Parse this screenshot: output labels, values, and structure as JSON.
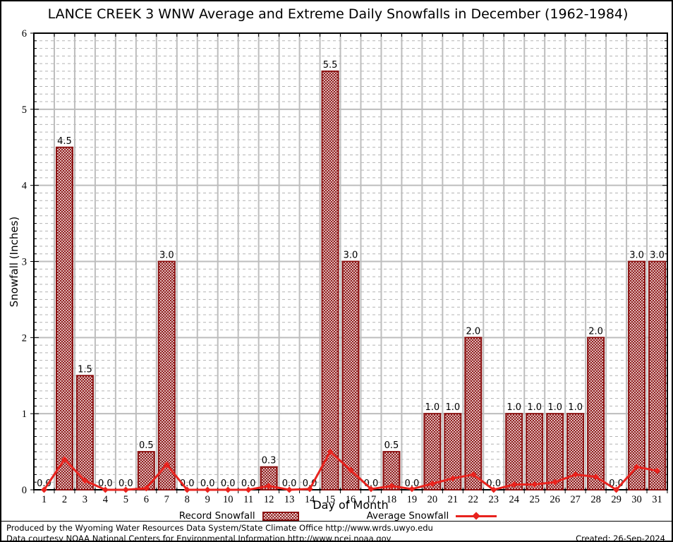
{
  "title": "LANCE CREEK 3 WNW Average and Extreme Daily Snowfalls in December (1962-1984)",
  "chart_data": {
    "type": "bar",
    "title": "LANCE CREEK 3 WNW Average and Extreme Daily Snowfalls in December (1962-1984)",
    "xlabel": "Day of Month",
    "ylabel": "Snowfall (Inches)",
    "ylim": [
      0,
      6
    ],
    "yticks": [
      0,
      1,
      2,
      3,
      4,
      5,
      6
    ],
    "y_minor_step": 0.1,
    "grid": "major-solid, minor-dashed, vertical day separators",
    "legend_position": "bottom-center",
    "categories": [
      1,
      2,
      3,
      4,
      5,
      6,
      7,
      8,
      9,
      10,
      11,
      12,
      13,
      14,
      15,
      16,
      17,
      18,
      19,
      20,
      21,
      22,
      23,
      24,
      25,
      26,
      27,
      28,
      29,
      30,
      31
    ],
    "series": [
      {
        "name": "Record Snowfall",
        "type": "bar",
        "values": [
          0.0,
          4.5,
          1.5,
          0.0,
          0.0,
          0.5,
          3.0,
          0.0,
          0.0,
          0.0,
          0.0,
          0.3,
          0.0,
          0.0,
          5.5,
          3.0,
          0.0,
          0.5,
          0.0,
          1.0,
          1.0,
          2.0,
          0.0,
          1.0,
          1.0,
          1.0,
          1.0,
          2.0,
          0.0,
          3.0,
          3.0
        ],
        "data_labels": [
          "0.0",
          "4.5",
          "1.5",
          "0.0",
          "0.0",
          "0.5",
          "3.0",
          "0.0",
          "0.0",
          "0.0",
          "0.0",
          "0.3",
          "0.0",
          "0.0",
          "5.5",
          "3.0",
          "0.0",
          "0.5",
          "0.0",
          "1.0",
          "1.0",
          "2.0",
          "0.0",
          "1.0",
          "1.0",
          "1.0",
          "1.0",
          "2.0",
          "0.0",
          "3.0",
          "3.0"
        ]
      },
      {
        "name": "Average Snowfall",
        "type": "line",
        "values": [
          0,
          0.4,
          0.12,
          0,
          0,
          0.02,
          0.33,
          0,
          0,
          0,
          0,
          0.05,
          0,
          0.01,
          0.5,
          0.26,
          0.01,
          0.05,
          0.01,
          0.08,
          0.15,
          0.2,
          0,
          0.07,
          0.07,
          0.1,
          0.2,
          0.17,
          0,
          0.3,
          0.25
        ]
      }
    ],
    "colors": {
      "bar_outline": "#8b1111",
      "bar_hatch": "#8b1111",
      "line": "#e8231e",
      "grid_major": "#bdbdbd",
      "grid_minor": "#b4b4b4",
      "axis": "#000000"
    }
  },
  "legend": {
    "record_label": "Record Snowfall",
    "average_label": "Average Snowfall"
  },
  "footer": {
    "line1": "Produced by the Wyoming Water Resources Data System/State Climate Office http://www.wrds.uwyo.edu",
    "line2": "Data courtesy NOAA National Centers for Environmental Information http://www.ncei.noaa.gov",
    "created": "Created: 26-Sep-2024"
  }
}
